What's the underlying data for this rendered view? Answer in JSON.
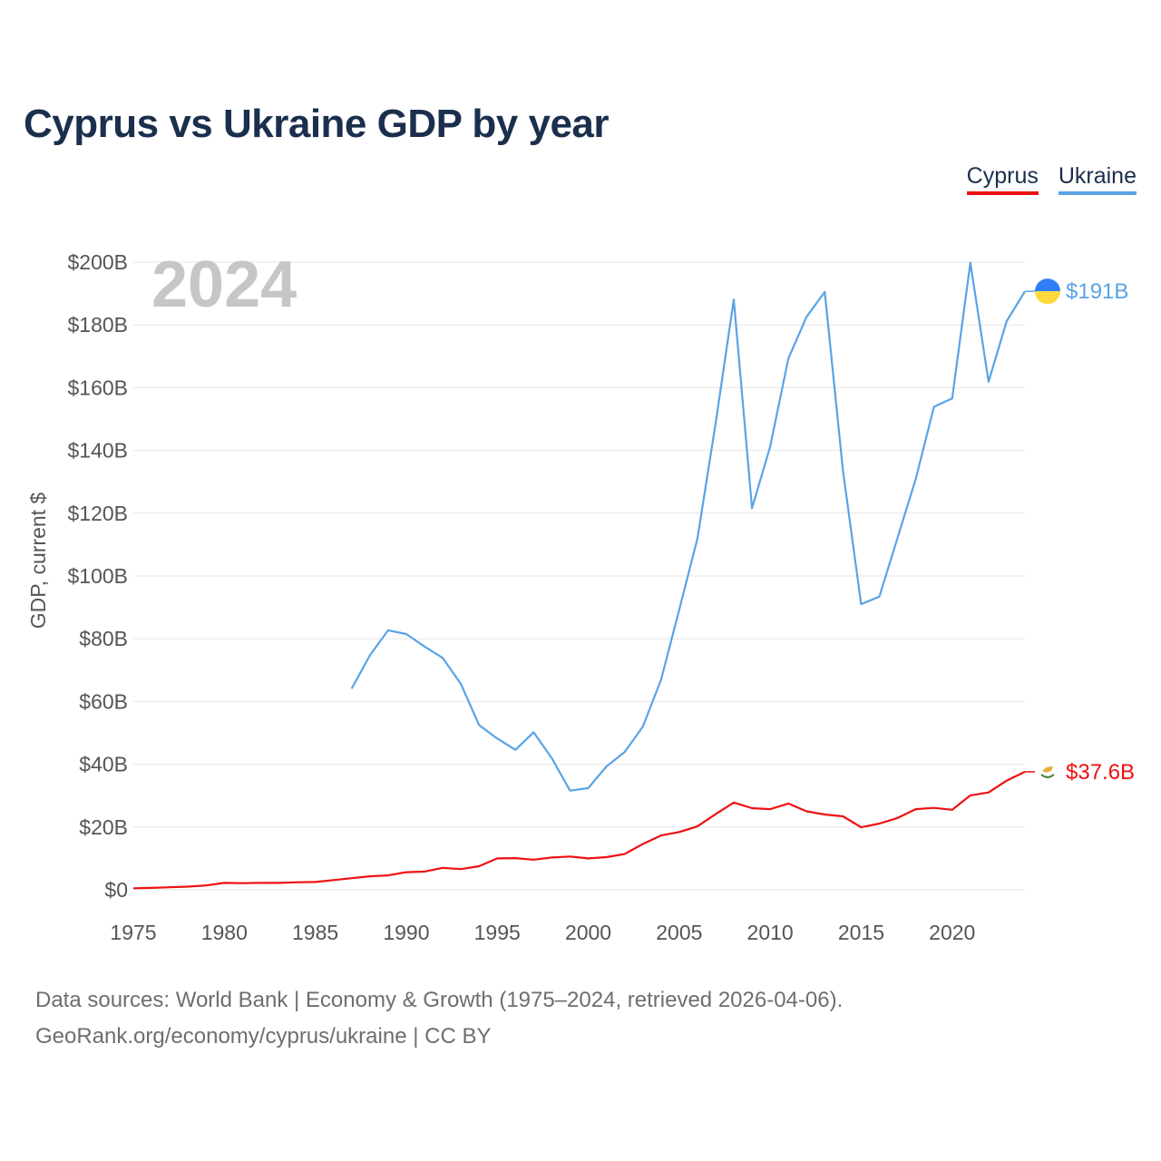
{
  "title": "Cyprus vs Ukraine GDP by year",
  "legend": {
    "cyprus": "Cyprus",
    "ukraine": "Ukraine"
  },
  "current_year": "2024",
  "footer": {
    "line1": "Data sources: World Bank | Economy & Growth (1975–2024, retrieved 2026-04-06).",
    "line2": "GeoRank.org/economy/cyprus/ukraine | CC BY"
  },
  "colors": {
    "cyprus": "#ee1111",
    "ukraine": "#5aa3e6",
    "title": "#1b2f4d"
  },
  "icons": {
    "ukraine_flag": "ukraine-flag-icon",
    "cyprus_flag": "cyprus-flag-icon"
  },
  "chart_data": {
    "type": "line",
    "title": "Cyprus vs Ukraine GDP by year",
    "xlabel": "",
    "ylabel": "GDP, current $",
    "xlim": [
      1975,
      2024
    ],
    "ylim": [
      0,
      200
    ],
    "y_unit": "billions USD",
    "x_ticks": [
      1975,
      1980,
      1985,
      1990,
      1995,
      2000,
      2005,
      2010,
      2015,
      2020
    ],
    "y_ticks": [
      0,
      20,
      40,
      60,
      80,
      100,
      120,
      140,
      160,
      180,
      200
    ],
    "y_tick_labels": [
      "$0",
      "$20B",
      "$40B",
      "$60B",
      "$80B",
      "$100B",
      "$120B",
      "$140B",
      "$160B",
      "$180B",
      "$200B"
    ],
    "grid": true,
    "legend_position": "top-right",
    "series": [
      {
        "name": "Cyprus",
        "color": "#ee1111",
        "end_label": "$37.6B",
        "points": [
          [
            1975,
            0.5
          ],
          [
            1976,
            0.6
          ],
          [
            1977,
            0.8
          ],
          [
            1978,
            1.0
          ],
          [
            1979,
            1.4
          ],
          [
            1980,
            2.2
          ],
          [
            1981,
            2.1
          ],
          [
            1982,
            2.2
          ],
          [
            1983,
            2.2
          ],
          [
            1984,
            2.4
          ],
          [
            1985,
            2.5
          ],
          [
            1986,
            3.1
          ],
          [
            1987,
            3.7
          ],
          [
            1988,
            4.3
          ],
          [
            1989,
            4.6
          ],
          [
            1990,
            5.6
          ],
          [
            1991,
            5.8
          ],
          [
            1992,
            7.0
          ],
          [
            1993,
            6.6
          ],
          [
            1994,
            7.5
          ],
          [
            1995,
            10.0
          ],
          [
            1996,
            10.1
          ],
          [
            1997,
            9.6
          ],
          [
            1998,
            10.3
          ],
          [
            1999,
            10.6
          ],
          [
            2000,
            10.0
          ],
          [
            2001,
            10.4
          ],
          [
            2002,
            11.4
          ],
          [
            2003,
            14.6
          ],
          [
            2004,
            17.3
          ],
          [
            2005,
            18.4
          ],
          [
            2006,
            20.2
          ],
          [
            2007,
            24.1
          ],
          [
            2008,
            27.8
          ],
          [
            2009,
            26.0
          ],
          [
            2010,
            25.7
          ],
          [
            2011,
            27.5
          ],
          [
            2012,
            25.0
          ],
          [
            2013,
            24.0
          ],
          [
            2014,
            23.4
          ],
          [
            2015,
            19.9
          ],
          [
            2016,
            21.1
          ],
          [
            2017,
            22.9
          ],
          [
            2018,
            25.7
          ],
          [
            2019,
            26.1
          ],
          [
            2020,
            25.5
          ],
          [
            2021,
            30.1
          ],
          [
            2022,
            31.0
          ],
          [
            2023,
            34.8
          ],
          [
            2024,
            37.6
          ]
        ]
      },
      {
        "name": "Ukraine",
        "color": "#5aa3e6",
        "end_label": "$191B",
        "points": [
          [
            1987,
            64.1
          ],
          [
            1988,
            74.7
          ],
          [
            1989,
            82.7
          ],
          [
            1990,
            81.5
          ],
          [
            1991,
            77.5
          ],
          [
            1992,
            73.9
          ],
          [
            1993,
            65.6
          ],
          [
            1994,
            52.5
          ],
          [
            1995,
            48.2
          ],
          [
            1996,
            44.6
          ],
          [
            1997,
            50.2
          ],
          [
            1998,
            41.9
          ],
          [
            1999,
            31.6
          ],
          [
            2000,
            32.4
          ],
          [
            2001,
            39.3
          ],
          [
            2002,
            43.9
          ],
          [
            2003,
            52.0
          ],
          [
            2004,
            66.9
          ],
          [
            2005,
            89.2
          ],
          [
            2006,
            111.9
          ],
          [
            2007,
            148.7
          ],
          [
            2008,
            188.1
          ],
          [
            2009,
            121.6
          ],
          [
            2010,
            141.2
          ],
          [
            2011,
            169.3
          ],
          [
            2012,
            182.6
          ],
          [
            2013,
            190.5
          ],
          [
            2014,
            133.5
          ],
          [
            2015,
            91.0
          ],
          [
            2016,
            93.4
          ],
          [
            2017,
            112.2
          ],
          [
            2018,
            130.9
          ],
          [
            2019,
            153.9
          ],
          [
            2020,
            156.6
          ],
          [
            2021,
            199.8
          ],
          [
            2022,
            161.9
          ],
          [
            2023,
            181.2
          ],
          [
            2024,
            190.7
          ]
        ]
      }
    ]
  }
}
